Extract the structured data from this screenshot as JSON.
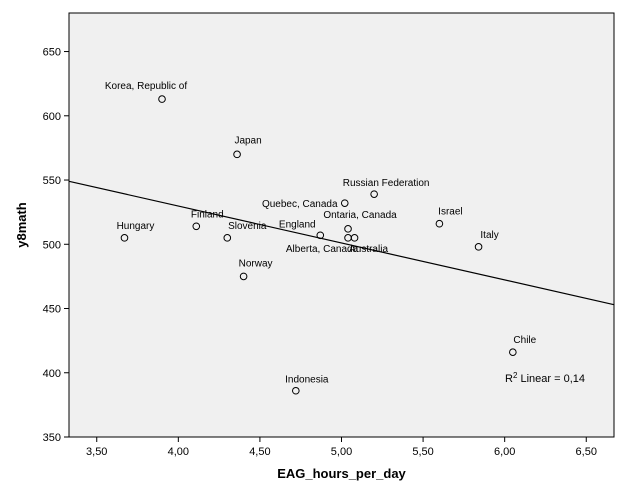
{
  "chart_data": {
    "type": "scatter",
    "xlabel": "EAG_hours_per_day",
    "ylabel": "y8math",
    "xlim": [
      3.33,
      6.67
    ],
    "ylim": [
      350,
      680
    ],
    "x_ticks": [
      "3,50",
      "4,00",
      "4,50",
      "5,00",
      "5,50",
      "6,00",
      "6,50"
    ],
    "x_tick_values": [
      3.5,
      4.0,
      4.5,
      5.0,
      5.5,
      6.0,
      6.5
    ],
    "y_ticks": [
      "350",
      "400",
      "450",
      "500",
      "550",
      "600",
      "650"
    ],
    "y_tick_values": [
      350,
      400,
      450,
      500,
      550,
      600,
      650
    ],
    "points": [
      {
        "label": "Korea, Republic of",
        "x": 3.9,
        "y": 613
      },
      {
        "label": "Japan",
        "x": 4.36,
        "y": 570
      },
      {
        "label": "Russian Federation",
        "x": 5.2,
        "y": 539
      },
      {
        "label": "Quebec, Canada",
        "x": 5.02,
        "y": 532
      },
      {
        "label": "Israel",
        "x": 5.6,
        "y": 516
      },
      {
        "label": "Finland",
        "x": 4.11,
        "y": 514
      },
      {
        "label": "Ontaria, Canada",
        "x": 5.04,
        "y": 512
      },
      {
        "label": "England",
        "x": 4.87,
        "y": 507
      },
      {
        "label": "Hungary",
        "x": 3.67,
        "y": 505
      },
      {
        "label": "Slovenia",
        "x": 4.3,
        "y": 505
      },
      {
        "label": "Alberta, Canada",
        "x": 5.04,
        "y": 505
      },
      {
        "label": "Australia",
        "x": 5.08,
        "y": 505
      },
      {
        "label": "Italy",
        "x": 5.84,
        "y": 498
      },
      {
        "label": "Norway",
        "x": 4.4,
        "y": 475
      },
      {
        "label": "Chile",
        "x": 6.05,
        "y": 416
      },
      {
        "label": "Indonesia",
        "x": 4.72,
        "y": 386
      }
    ],
    "fit_line": {
      "x": [
        3.33,
        6.67
      ],
      "y": [
        549,
        453
      ]
    },
    "r_squared_label": {
      "prefix": "R",
      "sup": "2",
      "text": " Linear = 0,14"
    },
    "grid": false,
    "background": "#f0f0f0",
    "marker_color": "#000000",
    "line_color": "#000000"
  }
}
